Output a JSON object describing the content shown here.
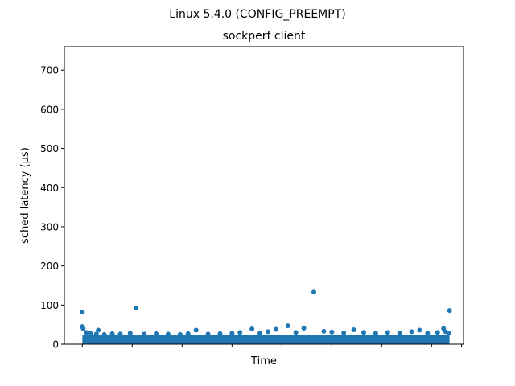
{
  "chart_data": {
    "type": "scatter",
    "suptitle": "Linux 5.4.0 (CONFIG_PREEMPT)",
    "title": "sockperf client",
    "xlabel": "Time",
    "ylabel": "sched latency (µs)",
    "ylim": [
      0,
      760
    ],
    "xlim": [
      0,
      1
    ],
    "yticks": [
      0,
      100,
      200,
      300,
      400,
      500,
      600,
      700
    ],
    "yticklabels": [
      "0",
      "100",
      "200",
      "300",
      "400",
      "500",
      "600",
      "700"
    ],
    "xticks": [
      0.045,
      0.17,
      0.295,
      0.42,
      0.545,
      0.67,
      0.795,
      0.92,
      0.995
    ],
    "xticklabels": [
      "",
      "",
      "",
      "",
      "",
      "",
      "",
      "",
      ""
    ],
    "grid": false,
    "band": {
      "x_start": 0.045,
      "x_end": 0.965,
      "y_min": 0,
      "y_max": 24
    },
    "series": [
      {
        "color": "#1f77b4",
        "points": [
          {
            "x": 0.045,
            "y": 82
          },
          {
            "x": 0.045,
            "y": 45
          },
          {
            "x": 0.047,
            "y": 40
          },
          {
            "x": 0.055,
            "y": 30
          },
          {
            "x": 0.065,
            "y": 28
          },
          {
            "x": 0.08,
            "y": 26
          },
          {
            "x": 0.085,
            "y": 36
          },
          {
            "x": 0.1,
            "y": 25
          },
          {
            "x": 0.12,
            "y": 27
          },
          {
            "x": 0.14,
            "y": 26
          },
          {
            "x": 0.165,
            "y": 28
          },
          {
            "x": 0.18,
            "y": 92
          },
          {
            "x": 0.2,
            "y": 26
          },
          {
            "x": 0.23,
            "y": 27
          },
          {
            "x": 0.26,
            "y": 26
          },
          {
            "x": 0.29,
            "y": 25
          },
          {
            "x": 0.31,
            "y": 27
          },
          {
            "x": 0.33,
            "y": 36
          },
          {
            "x": 0.36,
            "y": 26
          },
          {
            "x": 0.39,
            "y": 27
          },
          {
            "x": 0.42,
            "y": 28
          },
          {
            "x": 0.44,
            "y": 30
          },
          {
            "x": 0.47,
            "y": 39
          },
          {
            "x": 0.49,
            "y": 28
          },
          {
            "x": 0.51,
            "y": 32
          },
          {
            "x": 0.53,
            "y": 38
          },
          {
            "x": 0.56,
            "y": 47
          },
          {
            "x": 0.58,
            "y": 30
          },
          {
            "x": 0.6,
            "y": 41
          },
          {
            "x": 0.625,
            "y": 133
          },
          {
            "x": 0.65,
            "y": 33
          },
          {
            "x": 0.67,
            "y": 31
          },
          {
            "x": 0.7,
            "y": 29
          },
          {
            "x": 0.725,
            "y": 37
          },
          {
            "x": 0.75,
            "y": 30
          },
          {
            "x": 0.78,
            "y": 28
          },
          {
            "x": 0.81,
            "y": 30
          },
          {
            "x": 0.84,
            "y": 28
          },
          {
            "x": 0.87,
            "y": 32
          },
          {
            "x": 0.89,
            "y": 36
          },
          {
            "x": 0.91,
            "y": 28
          },
          {
            "x": 0.935,
            "y": 30
          },
          {
            "x": 0.95,
            "y": 40
          },
          {
            "x": 0.955,
            "y": 32
          },
          {
            "x": 0.965,
            "y": 86
          },
          {
            "x": 0.963,
            "y": 28
          }
        ]
      }
    ]
  }
}
